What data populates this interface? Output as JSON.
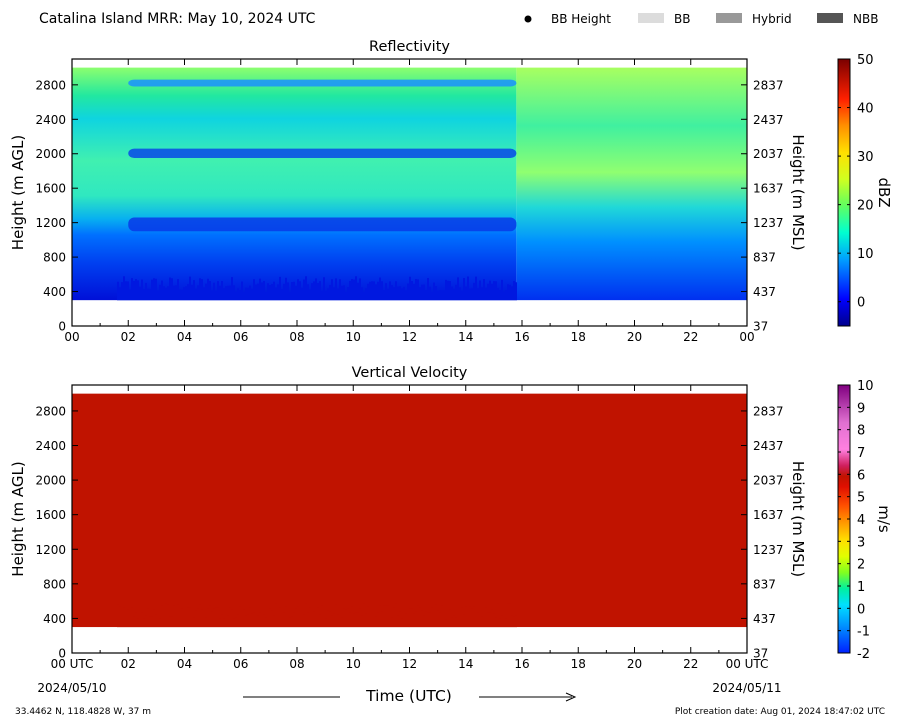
{
  "header": {
    "title": "Catalina Island MRR:  May 10, 2024 UTC",
    "legend": [
      {
        "label": "BB Height",
        "kind": "dot",
        "color": "#000000"
      },
      {
        "label": "BB",
        "kind": "box",
        "color": "#dcdcdc"
      },
      {
        "label": "Hybrid",
        "kind": "box",
        "color": "#999999"
      },
      {
        "label": "NBB",
        "kind": "box",
        "color": "#555555"
      }
    ]
  },
  "chart_data": [
    {
      "type": "heatmap",
      "title": "Reflectivity",
      "ylabel": "Height (m AGL)",
      "y2label": "Height (m MSL)",
      "colorbar_label": "dBZ",
      "x_ticks": [
        "00",
        "02",
        "04",
        "06",
        "08",
        "10",
        "12",
        "14",
        "16",
        "18",
        "20",
        "22",
        "00"
      ],
      "xlim": [
        0,
        24
      ],
      "ylim": [
        0,
        3100
      ],
      "y_ticks": [
        0,
        400,
        800,
        1200,
        1600,
        2000,
        2400,
        2800
      ],
      "y2_ticks": [
        "37",
        "437",
        "837",
        "1237",
        "1637",
        "2037",
        "2437",
        "2837"
      ],
      "colorbar_ticks": [
        0,
        10,
        20,
        30,
        40,
        50
      ],
      "colorbar_range": [
        -5,
        50
      ],
      "data_top_height": 3000,
      "data_bottom_height": 300,
      "rain_transition_hour": 15.8
    },
    {
      "type": "heatmap",
      "title": "Vertical Velocity",
      "ylabel": "Height (m AGL)",
      "y2label": "Height (m MSL)",
      "xlabel": "Time (UTC)",
      "colorbar_label": "m/s",
      "x_ticks": [
        "00 UTC",
        "02",
        "04",
        "06",
        "08",
        "10",
        "12",
        "14",
        "16",
        "18",
        "20",
        "22",
        "00 UTC"
      ],
      "x_start_date": "2024/05/10",
      "x_end_date": "2024/05/11",
      "xlim": [
        0,
        24
      ],
      "ylim": [
        0,
        3100
      ],
      "y_ticks": [
        0,
        400,
        800,
        1200,
        1600,
        2000,
        2400,
        2800
      ],
      "y2_ticks": [
        "37",
        "437",
        "837",
        "1237",
        "1637",
        "2037",
        "2437",
        "2837"
      ],
      "colorbar_ticks": [
        -2,
        -1,
        0,
        1,
        2,
        3,
        4,
        5,
        6,
        7,
        8,
        9,
        10
      ],
      "colorbar_range": [
        -2,
        10
      ],
      "field_color": "#c01300",
      "data_top_height": 3000,
      "data_bottom_height": 300
    }
  ],
  "footer": {
    "location": "33.4462 N, 118.4828 W, 37 m",
    "creation": "Plot creation date: Aug 01, 2024 18:47:02 UTC"
  }
}
